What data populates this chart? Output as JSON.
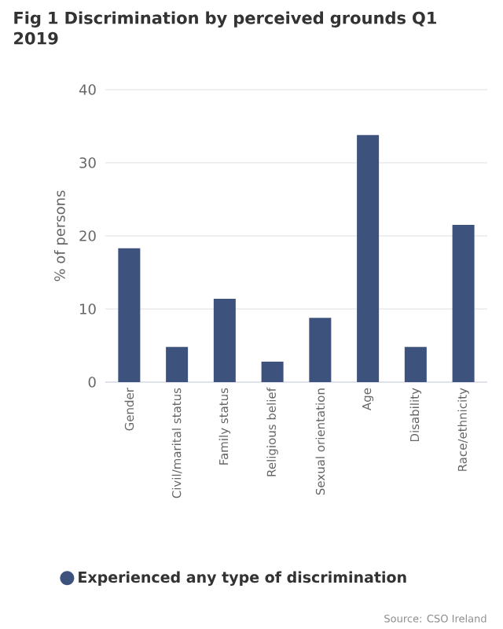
{
  "chart_data": {
    "type": "bar",
    "title": "Fig 1 Discrimination by perceived grounds Q1 2019",
    "ylabel": "% of persons",
    "categories": [
      "Gender",
      "Civil/marital status",
      "Family status",
      "Religious belief",
      "Sexual orientation",
      "Age",
      "Disability",
      "Race/ethnicity"
    ],
    "series": [
      {
        "name": "Experienced any type of discrimination",
        "color": "#3d527d",
        "values": [
          18.3,
          4.8,
          11.4,
          2.8,
          8.8,
          33.8,
          4.8,
          21.5
        ]
      }
    ],
    "ylim": [
      0,
      40
    ],
    "yticks": [
      0,
      10,
      20,
      30,
      40
    ],
    "grid": "y",
    "legend": "bottom",
    "annotations": [
      "Source: CSO Ireland"
    ]
  }
}
